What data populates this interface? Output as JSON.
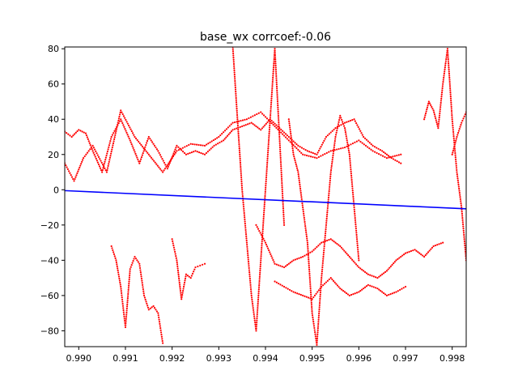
{
  "chart_data": {
    "type": "scatter",
    "title": "base_wx corrcoef:-0.06",
    "xlabel": "",
    "ylabel": "",
    "xlim": [
      0.9897,
      0.9983
    ],
    "ylim": [
      -89,
      81
    ],
    "grid": false,
    "xticks": [
      0.99,
      0.991,
      0.992,
      0.993,
      0.994,
      0.995,
      0.996,
      0.997,
      0.998
    ],
    "xtick_labels": [
      "0.990",
      "0.991",
      "0.992",
      "0.993",
      "0.994",
      "0.995",
      "0.996",
      "0.997",
      "0.998"
    ],
    "yticks": [
      -80,
      -60,
      -40,
      -20,
      0,
      20,
      40,
      60,
      80
    ],
    "ytick_labels": [
      "−80",
      "−60",
      "−40",
      "−20",
      "0",
      "20",
      "40",
      "60",
      "80"
    ],
    "series": [
      {
        "kind": "scatter",
        "color": "#ff0000",
        "traces": [
          {
            "x": [
              0.9897,
              0.98985,
              0.99,
              0.99015,
              0.9903,
              0.9905,
              0.9907,
              0.9909,
              0.9911,
              0.9913,
              0.9915,
              0.9917,
              0.9919,
              0.9921,
              0.9923,
              0.9925,
              0.9927,
              0.9929,
              0.9931,
              0.9933,
              0.9935,
              0.9937,
              0.9939,
              0.9941,
              0.9943,
              0.9945,
              0.9947,
              0.9949,
              0.9951,
              0.9953,
              0.9955,
              0.9957,
              0.9959,
              0.9961,
              0.9963,
              0.9965,
              0.9967,
              0.9969
            ],
            "y": [
              33,
              30,
              34,
              32,
              22,
              10,
              30,
              40,
              28,
              15,
              30,
              22,
              12,
              25,
              20,
              22,
              20,
              25,
              28,
              34,
              36,
              38,
              34,
              40,
              35,
              30,
              25,
              22,
              20,
              30,
              35,
              38,
              40,
              30,
              25,
              22,
              18,
              15
            ]
          },
          {
            "x": [
              0.9897,
              0.9899,
              0.9901,
              0.9903,
              0.9906,
              0.9909,
              0.9912,
              0.9915,
              0.9918,
              0.9921,
              0.9924,
              0.9927,
              0.993,
              0.9933,
              0.9936,
              0.9939,
              0.9942,
              0.9945,
              0.9948,
              0.9951,
              0.9954,
              0.9957,
              0.996,
              0.9963,
              0.9966,
              0.9969
            ],
            "y": [
              15,
              5,
              18,
              25,
              10,
              45,
              30,
              20,
              10,
              22,
              26,
              25,
              30,
              38,
              40,
              44,
              36,
              28,
              20,
              18,
              22,
              24,
              28,
              22,
              18,
              20
            ]
          },
          {
            "x": [
              0.9907,
              0.9908,
              0.9909,
              0.991,
              0.9911,
              0.9912,
              0.9913,
              0.9914,
              0.9915,
              0.9916,
              0.9917,
              0.9918
            ],
            "y": [
              -32,
              -40,
              -55,
              -78,
              -45,
              -38,
              -42,
              -60,
              -68,
              -66,
              -70,
              -87
            ]
          },
          {
            "x": [
              0.992,
              0.9921,
              0.9922,
              0.9923,
              0.9924,
              0.9925,
              0.9926,
              0.9927
            ],
            "y": [
              -28,
              -40,
              -62,
              -48,
              -50,
              -44,
              -43,
              -42
            ]
          },
          {
            "x": [
              0.9938,
              0.994,
              0.9942,
              0.9944,
              0.9946,
              0.9948,
              0.995,
              0.9952,
              0.9954,
              0.9956,
              0.9958,
              0.996,
              0.9962,
              0.9964,
              0.9966,
              0.9968,
              0.997,
              0.9972,
              0.9974,
              0.9976,
              0.9978
            ],
            "y": [
              -20,
              -30,
              -42,
              -44,
              -40,
              -38,
              -35,
              -30,
              -28,
              -32,
              -38,
              -44,
              -48,
              -50,
              -46,
              -40,
              -36,
              -34,
              -38,
              -32,
              -30
            ]
          },
          {
            "x": [
              0.9942,
              0.9944,
              0.9946,
              0.9948,
              0.995,
              0.9952,
              0.9954,
              0.9956,
              0.9958,
              0.996,
              0.9962,
              0.9964,
              0.9966,
              0.9968,
              0.997
            ],
            "y": [
              -52,
              -55,
              -58,
              -60,
              -62,
              -55,
              -50,
              -56,
              -60,
              -58,
              -54,
              -56,
              -60,
              -58,
              -55
            ]
          },
          {
            "x": [
              0.9945,
              0.9946,
              0.9947,
              0.9948,
              0.9949,
              0.995,
              0.9951,
              0.9952,
              0.9953,
              0.9954,
              0.9955,
              0.9956,
              0.9957,
              0.9958,
              0.9959,
              0.996
            ],
            "y": [
              40,
              20,
              10,
              -10,
              -30,
              -70,
              -88,
              -50,
              -20,
              10,
              30,
              42,
              35,
              20,
              -10,
              -40
            ]
          },
          {
            "x": [
              0.9933,
              0.9934,
              0.9935,
              0.9936,
              0.9937,
              0.9938,
              0.9939,
              0.994,
              0.9941,
              0.9942,
              0.9943,
              0.9944
            ],
            "y": [
              81,
              40,
              0,
              -30,
              -60,
              -80,
              -40,
              0,
              40,
              80,
              30,
              -20
            ]
          },
          {
            "x": [
              0.9974,
              0.9975,
              0.9976,
              0.9977,
              0.9978,
              0.9979,
              0.998,
              0.9981,
              0.9982,
              0.9983
            ],
            "y": [
              40,
              50,
              45,
              35,
              60,
              80,
              40,
              10,
              -10,
              -40
            ]
          },
          {
            "x": [
              0.998,
              0.9981,
              0.9982,
              0.9983
            ],
            "y": [
              20,
              30,
              38,
              44
            ]
          }
        ]
      },
      {
        "kind": "line",
        "color": "#0000ff",
        "x": [
          0.9897,
          0.9983
        ],
        "y": [
          -0.5,
          -10.8
        ]
      }
    ]
  }
}
